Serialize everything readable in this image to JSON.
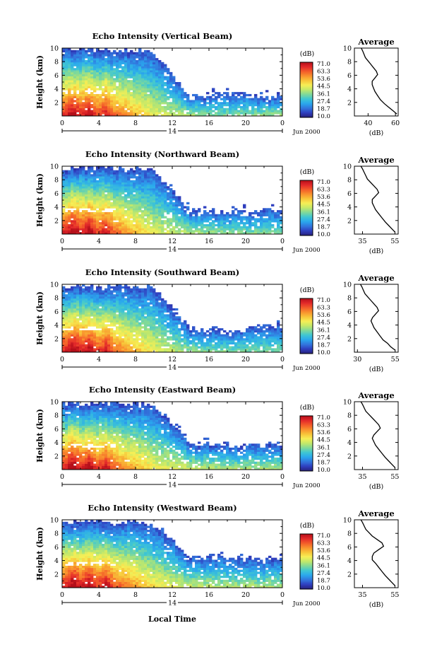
{
  "figure": {
    "xlabel": "Local Time",
    "date_label": "Jun 2000",
    "day_label": "14",
    "avg_title": "Average",
    "avg_xlabel": "(dB)",
    "ylabel": "Height (km)",
    "colorbar_unit": "(dB)",
    "colorbar_ticks": [
      "71.0",
      "63.3",
      "53.6",
      "44.5",
      "36.1",
      "27.4",
      "18.7",
      "10.0"
    ],
    "colorbar_colors": [
      "#b40f1a",
      "#e2282a",
      "#f35b2a",
      "#f9922e",
      "#f8c53a",
      "#f6ef56",
      "#c2e86a",
      "#7fd99a",
      "#3fc6d3",
      "#2aa7ee",
      "#3276dd",
      "#2f3fbf",
      "#27207c"
    ]
  },
  "chart_data": [
    {
      "type": "heatmap",
      "title": "Echo Intensity (Vertical Beam)",
      "xlabel": "Local Time",
      "ylabel": "Height (km)",
      "x_ticks": [
        "0",
        "4",
        "8",
        "12",
        "16",
        "20",
        "0"
      ],
      "y_ticks": [
        "2",
        "4",
        "6",
        "8",
        "10"
      ],
      "xlim": [
        0,
        24
      ],
      "ylim": [
        0,
        10
      ],
      "colorbar": {
        "label": "(dB)",
        "range": [
          10.0,
          71.0
        ]
      },
      "series": [
        {
          "time_h": 2,
          "top_km": 9.8,
          "peak_dB": 66
        },
        {
          "time_h": 6,
          "top_km": 9.8,
          "peak_dB": 60
        },
        {
          "time_h": 10,
          "top_km": 9.5,
          "peak_dB": 45
        },
        {
          "time_h": 14,
          "top_km": 2.8,
          "peak_dB": 40
        },
        {
          "time_h": 18,
          "top_km": 3.2,
          "peak_dB": 36
        },
        {
          "time_h": 22,
          "top_km": 2.8,
          "peak_dB": 38
        }
      ]
    },
    {
      "type": "line",
      "title": "Average",
      "xlabel": "(dB)",
      "x_ticks": [
        "40",
        "60"
      ],
      "y_ticks": [
        "2",
        "4",
        "6",
        "8",
        "10"
      ],
      "xlim": [
        30,
        62
      ],
      "ylim": [
        0,
        10
      ],
      "x": [
        61,
        58,
        55,
        52,
        49,
        47,
        45,
        44,
        43,
        43,
        45,
        47,
        46,
        44,
        42,
        40,
        38,
        37,
        36,
        35
      ],
      "y": [
        0.3,
        0.8,
        1.3,
        1.8,
        2.4,
        3.0,
        3.6,
        4.1,
        4.6,
        5.1,
        5.6,
        6.1,
        6.6,
        7.1,
        7.6,
        8.1,
        8.6,
        9.1,
        9.6,
        10.0
      ]
    },
    {
      "type": "heatmap",
      "title": "Echo Intensity (Northward Beam)",
      "xlabel": "Local Time",
      "ylabel": "Height (km)",
      "x_ticks": [
        "0",
        "4",
        "8",
        "12",
        "16",
        "20",
        "0"
      ],
      "y_ticks": [
        "2",
        "4",
        "6",
        "8",
        "10"
      ],
      "xlim": [
        0,
        24
      ],
      "ylim": [
        0,
        10
      ],
      "colorbar": {
        "label": "(dB)",
        "range": [
          10.0,
          71.0
        ]
      },
      "series": [
        {
          "time_h": 2,
          "top_km": 9.8,
          "peak_dB": 68
        },
        {
          "time_h": 6,
          "top_km": 9.8,
          "peak_dB": 60
        },
        {
          "time_h": 10,
          "top_km": 9.5,
          "peak_dB": 45
        },
        {
          "time_h": 14,
          "top_km": 3.5,
          "peak_dB": 40
        },
        {
          "time_h": 18,
          "top_km": 3.2,
          "peak_dB": 38
        },
        {
          "time_h": 22,
          "top_km": 3.5,
          "peak_dB": 36
        }
      ]
    },
    {
      "type": "line",
      "title": "Average",
      "xlabel": "(dB)",
      "x_ticks": [
        "35",
        "55"
      ],
      "y_ticks": [
        "2",
        "4",
        "6",
        "8",
        "10"
      ],
      "xlim": [
        30,
        57
      ],
      "ylim": [
        0,
        10
      ],
      "x": [
        55,
        53,
        51,
        49,
        47,
        45,
        43,
        42,
        41,
        41,
        43,
        45,
        44,
        42,
        40,
        38,
        37,
        36,
        35,
        34
      ],
      "y": [
        0.3,
        0.8,
        1.3,
        1.8,
        2.4,
        3.0,
        3.6,
        4.1,
        4.6,
        5.1,
        5.6,
        6.1,
        6.6,
        7.1,
        7.6,
        8.1,
        8.6,
        9.1,
        9.6,
        10.0
      ]
    },
    {
      "type": "heatmap",
      "title": "Echo Intensity (Southward Beam)",
      "xlabel": "Local Time",
      "ylabel": "Height (km)",
      "x_ticks": [
        "0",
        "4",
        "8",
        "12",
        "16",
        "20",
        "0"
      ],
      "y_ticks": [
        "2",
        "4",
        "6",
        "8",
        "10"
      ],
      "xlim": [
        0,
        24
      ],
      "ylim": [
        0,
        10
      ],
      "colorbar": {
        "label": "(dB)",
        "range": [
          10.0,
          71.0
        ]
      },
      "series": [
        {
          "time_h": 2,
          "top_km": 9.8,
          "peak_dB": 68
        },
        {
          "time_h": 6,
          "top_km": 9.8,
          "peak_dB": 60
        },
        {
          "time_h": 10,
          "top_km": 9.5,
          "peak_dB": 45
        },
        {
          "time_h": 14,
          "top_km": 3.5,
          "peak_dB": 38
        },
        {
          "time_h": 18,
          "top_km": 3.0,
          "peak_dB": 36
        },
        {
          "time_h": 22,
          "top_km": 3.8,
          "peak_dB": 36
        }
      ]
    },
    {
      "type": "line",
      "title": "Average",
      "xlabel": "(dB)",
      "x_ticks": [
        "30",
        "55"
      ],
      "y_ticks": [
        "2",
        "4",
        "6",
        "8",
        "10"
      ],
      "xlim": [
        28,
        57
      ],
      "ylim": [
        0,
        10
      ],
      "x": [
        55,
        52,
        50,
        47,
        45,
        43,
        41,
        40,
        39,
        40,
        42,
        44,
        43,
        41,
        39,
        37,
        35,
        34,
        33,
        32
      ],
      "y": [
        0.3,
        0.8,
        1.3,
        1.8,
        2.4,
        3.0,
        3.6,
        4.1,
        4.6,
        5.1,
        5.6,
        6.1,
        6.6,
        7.1,
        7.6,
        8.1,
        8.6,
        9.1,
        9.6,
        10.0
      ]
    },
    {
      "type": "heatmap",
      "title": "Echo Intensity (Eastward Beam)",
      "xlabel": "Local Time",
      "ylabel": "Height (km)",
      "x_ticks": [
        "0",
        "4",
        "8",
        "12",
        "16",
        "20",
        "0"
      ],
      "y_ticks": [
        "2",
        "4",
        "6",
        "8",
        "10"
      ],
      "xlim": [
        0,
        24
      ],
      "ylim": [
        0,
        10
      ],
      "colorbar": {
        "label": "(dB)",
        "range": [
          10.0,
          71.0
        ]
      },
      "series": [
        {
          "time_h": 2,
          "top_km": 9.8,
          "peak_dB": 68
        },
        {
          "time_h": 6,
          "top_km": 9.8,
          "peak_dB": 60
        },
        {
          "time_h": 10,
          "top_km": 9.5,
          "peak_dB": 46
        },
        {
          "time_h": 14,
          "top_km": 4.0,
          "peak_dB": 42
        },
        {
          "time_h": 18,
          "top_km": 3.5,
          "peak_dB": 40
        },
        {
          "time_h": 22,
          "top_km": 3.5,
          "peak_dB": 40
        }
      ]
    },
    {
      "type": "line",
      "title": "Average",
      "xlabel": "(dB)",
      "x_ticks": [
        "35",
        "55"
      ],
      "y_ticks": [
        "2",
        "4",
        "6",
        "8",
        "10"
      ],
      "xlim": [
        30,
        57
      ],
      "ylim": [
        0,
        10
      ],
      "x": [
        55,
        53,
        51,
        49,
        47,
        45,
        43,
        42,
        41,
        42,
        44,
        46,
        45,
        43,
        41,
        39,
        37,
        36,
        35,
        34
      ],
      "y": [
        0.3,
        0.8,
        1.3,
        1.8,
        2.4,
        3.0,
        3.6,
        4.1,
        4.6,
        5.1,
        5.6,
        6.1,
        6.6,
        7.1,
        7.6,
        8.1,
        8.6,
        9.1,
        9.6,
        10.0
      ]
    },
    {
      "type": "heatmap",
      "title": "Echo Intensity (Westward Beam)",
      "xlabel": "Local Time",
      "ylabel": "Height (km)",
      "x_ticks": [
        "0",
        "4",
        "8",
        "12",
        "16",
        "20",
        "0"
      ],
      "y_ticks": [
        "2",
        "4",
        "6",
        "8",
        "10"
      ],
      "xlim": [
        0,
        24
      ],
      "ylim": [
        0,
        10
      ],
      "colorbar": {
        "label": "(dB)",
        "range": [
          10.0,
          71.0
        ]
      },
      "series": [
        {
          "time_h": 2,
          "top_km": 9.8,
          "peak_dB": 68
        },
        {
          "time_h": 6,
          "top_km": 9.8,
          "peak_dB": 62
        },
        {
          "time_h": 10,
          "top_km": 9.5,
          "peak_dB": 48
        },
        {
          "time_h": 14,
          "top_km": 4.5,
          "peak_dB": 42
        },
        {
          "time_h": 18,
          "top_km": 4.5,
          "peak_dB": 40
        },
        {
          "time_h": 22,
          "top_km": 4.0,
          "peak_dB": 40
        }
      ]
    },
    {
      "type": "line",
      "title": "Average",
      "xlabel": "(dB)",
      "x_ticks": [
        "35",
        "55"
      ],
      "y_ticks": [
        "2",
        "4",
        "6",
        "8",
        "10"
      ],
      "xlim": [
        30,
        57
      ],
      "ylim": [
        0,
        10
      ],
      "x": [
        55,
        53,
        51,
        49,
        47,
        45,
        43,
        41,
        41,
        42,
        45,
        48,
        47,
        44,
        41,
        39,
        37,
        36,
        35,
        34
      ],
      "y": [
        0.3,
        0.8,
        1.3,
        1.8,
        2.4,
        3.0,
        3.6,
        4.1,
        4.6,
        5.1,
        5.6,
        6.1,
        6.6,
        7.1,
        7.6,
        8.1,
        8.6,
        9.1,
        9.6,
        10.0
      ]
    }
  ]
}
